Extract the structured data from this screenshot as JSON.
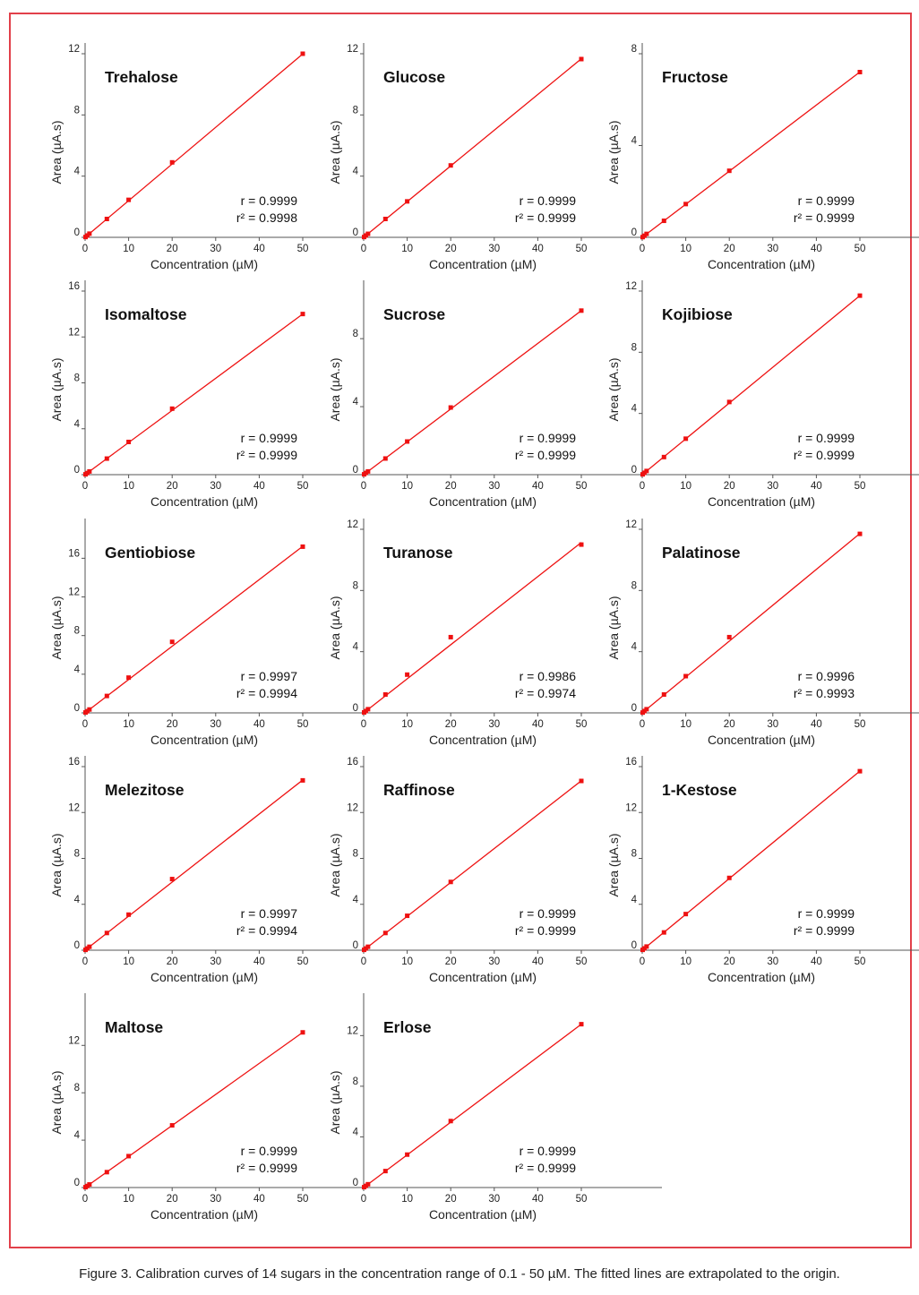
{
  "figure": {
    "caption": "Figure 3. Calibration curves of 14 sugars in the concentration range of 0.1 - 50 µM. The fitted lines are extrapolated to the origin.",
    "border_color": "#e2404a",
    "series_color": "#ee1111"
  },
  "chart_data": [
    {
      "type": "scatter",
      "title": "Trehalose",
      "xlabel": "Concentration (µM)",
      "ylabel": "Area (µA.s)",
      "xlim": [
        0,
        50
      ],
      "ylim": [
        0,
        12
      ],
      "x_ticks": [
        0,
        10,
        20,
        30,
        40,
        50
      ],
      "y_ticks": [
        0,
        4,
        8,
        12
      ],
      "x": [
        0.1,
        0.5,
        1,
        5,
        10,
        20,
        50
      ],
      "y": [
        0.02,
        0.12,
        0.24,
        1.2,
        2.45,
        4.9,
        12.0
      ],
      "r": "r = 0.9999",
      "r2": "r² = 0.9998",
      "fit_slope": 0.2397
    },
    {
      "type": "scatter",
      "title": "Glucose",
      "xlabel": "Concentration (µM)",
      "ylabel": "Area (µA.s)",
      "xlim": [
        0,
        50
      ],
      "ylim": [
        0,
        12
      ],
      "x_ticks": [
        0,
        10,
        20,
        30,
        40,
        50
      ],
      "y_ticks": [
        0,
        4,
        8,
        12
      ],
      "x": [
        0.1,
        0.5,
        1,
        5,
        10,
        20,
        50
      ],
      "y": [
        0.02,
        0.12,
        0.23,
        1.2,
        2.35,
        4.7,
        11.65
      ],
      "r": "r = 0.9999",
      "r2": "r² = 0.9999",
      "fit_slope": 0.2334
    },
    {
      "type": "scatter",
      "title": "Fructose",
      "xlabel": "Concentration (µM)",
      "ylabel": "Area (µA.s)",
      "xlim": [
        0,
        50
      ],
      "ylim": [
        0,
        8
      ],
      "x_ticks": [
        0,
        10,
        20,
        30,
        40,
        50
      ],
      "y_ticks": [
        0,
        4,
        8
      ],
      "x": [
        0.1,
        0.5,
        1,
        5,
        10,
        20,
        50
      ],
      "y": [
        0.01,
        0.07,
        0.15,
        0.72,
        1.45,
        2.9,
        7.2
      ],
      "r": "r = 0.9999",
      "r2": "r² = 0.9999",
      "fit_slope": 0.1441
    },
    {
      "type": "scatter",
      "title": "Isomaltose",
      "xlabel": "Concentration (µM)",
      "ylabel": "Area (µA.s)",
      "xlim": [
        0,
        50
      ],
      "ylim": [
        0,
        16
      ],
      "x_ticks": [
        0,
        10,
        20,
        30,
        40,
        50
      ],
      "y_ticks": [
        0,
        4,
        8,
        12,
        16
      ],
      "x": [
        0.1,
        0.5,
        1,
        5,
        10,
        20,
        50
      ],
      "y": [
        0.03,
        0.14,
        0.28,
        1.4,
        2.85,
        5.75,
        14.0
      ],
      "r": "r = 0.9999",
      "r2": "r² = 0.9999",
      "fit_slope": 0.28
    },
    {
      "type": "scatter",
      "title": "Sucrose",
      "xlabel": "Concentration (µM)",
      "ylabel": "Area (µA.s)",
      "xlim": [
        0,
        50
      ],
      "ylim": [
        0,
        10.8
      ],
      "x_ticks": [
        0,
        10,
        20,
        30,
        40,
        50
      ],
      "y_ticks": [
        0,
        4,
        8
      ],
      "x": [
        0.1,
        0.5,
        1,
        5,
        10,
        20,
        50
      ],
      "y": [
        0.02,
        0.1,
        0.19,
        0.95,
        1.95,
        3.95,
        9.65
      ],
      "r": "r = 0.9999",
      "r2": "r² = 0.9999",
      "fit_slope": 0.193
    },
    {
      "type": "scatter",
      "title": "Kojibiose",
      "xlabel": "Concentration (µM)",
      "ylabel": "Area (µA.s)",
      "xlim": [
        0,
        50
      ],
      "ylim": [
        0,
        12
      ],
      "x_ticks": [
        0,
        10,
        20,
        30,
        40,
        50
      ],
      "y_ticks": [
        0,
        4,
        8,
        12
      ],
      "x": [
        0.1,
        0.5,
        1,
        5,
        10,
        20,
        50
      ],
      "y": [
        0.02,
        0.12,
        0.24,
        1.15,
        2.35,
        4.75,
        11.7
      ],
      "r": "r = 0.9999",
      "r2": "r² = 0.9999",
      "fit_slope": 0.234
    },
    {
      "type": "scatter",
      "title": "Gentiobiose",
      "xlabel": "Concentration (µM)",
      "ylabel": "Area (µA.s)",
      "xlim": [
        0,
        50
      ],
      "ylim": [
        0,
        19
      ],
      "x_ticks": [
        0,
        10,
        20,
        30,
        40,
        50
      ],
      "y_ticks": [
        0,
        4,
        8,
        12,
        16
      ],
      "x": [
        0.1,
        0.5,
        1,
        5,
        10,
        20,
        50
      ],
      "y": [
        0.04,
        0.17,
        0.35,
        1.75,
        3.65,
        7.35,
        17.2
      ],
      "r": "r = 0.9997",
      "r2": "r² = 0.9994",
      "fit_slope": 0.3448
    },
    {
      "type": "scatter",
      "title": "Turanose",
      "xlabel": "Concentration (µM)",
      "ylabel": "Area (µA.s)",
      "xlim": [
        0,
        50
      ],
      "ylim": [
        0,
        12
      ],
      "x_ticks": [
        0,
        10,
        20,
        30,
        40,
        50
      ],
      "y_ticks": [
        0,
        4,
        8,
        12
      ],
      "x": [
        0.1,
        0.5,
        1,
        5,
        10,
        20,
        50
      ],
      "y": [
        0.03,
        0.12,
        0.24,
        1.2,
        2.5,
        4.95,
        11.0
      ],
      "r": "r = 0.9986",
      "r2": "r² = 0.9974",
      "fit_slope": 0.2227
    },
    {
      "type": "scatter",
      "title": "Palatinose",
      "xlabel": "Concentration (µM)",
      "ylabel": "Area (µA.s)",
      "xlim": [
        0,
        50
      ],
      "ylim": [
        0,
        12
      ],
      "x_ticks": [
        0,
        10,
        20,
        30,
        40,
        50
      ],
      "y_ticks": [
        0,
        4,
        8,
        12
      ],
      "x": [
        0.1,
        0.5,
        1,
        5,
        10,
        20,
        50
      ],
      "y": [
        0.02,
        0.12,
        0.24,
        1.2,
        2.4,
        4.95,
        11.7
      ],
      "r": "r = 0.9996",
      "r2": "r² = 0.9993",
      "fit_slope": 0.2345
    },
    {
      "type": "scatter",
      "title": "Melezitose",
      "xlabel": "Concentration (µM)",
      "ylabel": "Area (µA.s)",
      "xlim": [
        0,
        50
      ],
      "ylim": [
        0,
        16
      ],
      "x_ticks": [
        0,
        10,
        20,
        30,
        40,
        50
      ],
      "y_ticks": [
        0,
        4,
        8,
        12,
        16
      ],
      "x": [
        0.1,
        0.5,
        1,
        5,
        10,
        20,
        50
      ],
      "y": [
        0.03,
        0.15,
        0.3,
        1.5,
        3.1,
        6.2,
        14.8
      ],
      "r": "r = 0.9997",
      "r2": "r² = 0.9994",
      "fit_slope": 0.2967
    },
    {
      "type": "scatter",
      "title": "Raffinose",
      "xlabel": "Concentration (µM)",
      "ylabel": "Area (µA.s)",
      "xlim": [
        0,
        50
      ],
      "ylim": [
        0,
        16
      ],
      "x_ticks": [
        0,
        10,
        20,
        30,
        40,
        50
      ],
      "y_ticks": [
        0,
        4,
        8,
        12,
        16
      ],
      "x": [
        0.1,
        0.5,
        1,
        5,
        10,
        20,
        50
      ],
      "y": [
        0.03,
        0.15,
        0.3,
        1.5,
        3.0,
        5.95,
        14.75
      ],
      "r": "r = 0.9999",
      "r2": "r² = 0.9999",
      "fit_slope": 0.2953
    },
    {
      "type": "scatter",
      "title": "1-Kestose",
      "xlabel": "Concentration (µM)",
      "ylabel": "Area (µA.s)",
      "xlim": [
        0,
        50
      ],
      "ylim": [
        0,
        16
      ],
      "x_ticks": [
        0,
        10,
        20,
        30,
        40,
        50
      ],
      "y_ticks": [
        0,
        4,
        8,
        12,
        16
      ],
      "x": [
        0.1,
        0.5,
        1,
        5,
        10,
        20,
        50
      ],
      "y": [
        0.03,
        0.16,
        0.32,
        1.55,
        3.15,
        6.3,
        15.6
      ],
      "r": "r = 0.9999",
      "r2": "r² = 0.9999",
      "fit_slope": 0.3122
    },
    {
      "type": "scatter",
      "title": "Maltose",
      "xlabel": "Concentration (µM)",
      "ylabel": "Area (µA.s)",
      "xlim": [
        0,
        50
      ],
      "ylim": [
        0,
        15.5
      ],
      "x_ticks": [
        0,
        10,
        20,
        30,
        40,
        50
      ],
      "y_ticks": [
        0,
        4,
        8,
        12
      ],
      "x": [
        0.1,
        0.5,
        1,
        5,
        10,
        20,
        50
      ],
      "y": [
        0.03,
        0.13,
        0.26,
        1.3,
        2.65,
        5.25,
        13.1
      ],
      "r": "r = 0.9999",
      "r2": "r² = 0.9999",
      "fit_slope": 0.262
    },
    {
      "type": "scatter",
      "title": "Erlose",
      "xlabel": "Concentration (µM)",
      "ylabel": "Area (µA.s)",
      "xlim": [
        0,
        50
      ],
      "ylim": [
        0,
        14.5
      ],
      "x_ticks": [
        0,
        10,
        20,
        30,
        40,
        50
      ],
      "y_ticks": [
        0,
        4,
        8,
        12
      ],
      "x": [
        0.1,
        0.5,
        1,
        5,
        10,
        20,
        50
      ],
      "y": [
        0.03,
        0.13,
        0.26,
        1.3,
        2.6,
        5.25,
        12.9
      ],
      "r": "r = 0.9999",
      "r2": "r² = 0.9999",
      "fit_slope": 0.258
    }
  ]
}
